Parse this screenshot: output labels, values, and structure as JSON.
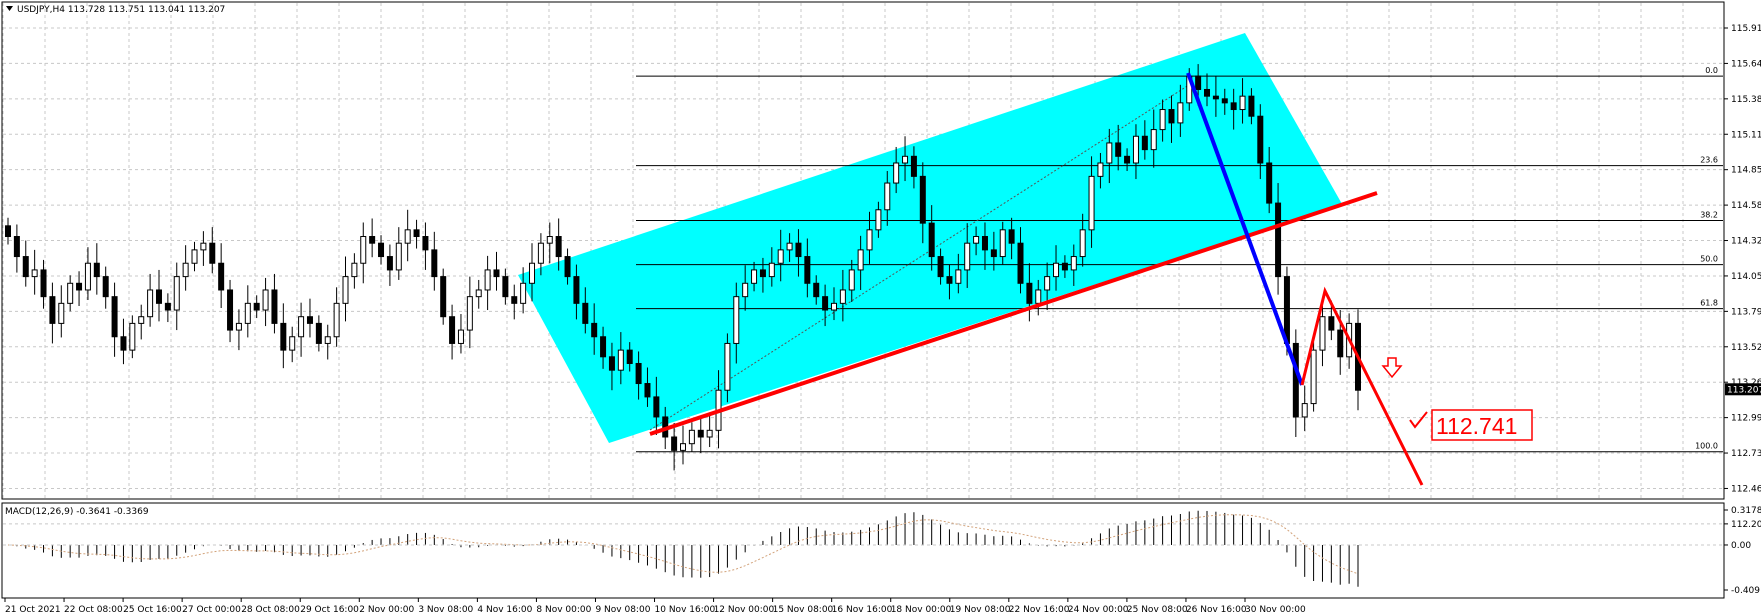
{
  "header": {
    "info": "USDJPY,H4 113.728 113.751 113.041 113.207"
  },
  "macd": {
    "label": "MACD(12,26,9) -0.3641 -0.3369",
    "ticks": [
      0.3178,
      0.0,
      -0.4091
    ],
    "tick_labels": [
      "0.3178",
      "0.00",
      "-0.4091"
    ]
  },
  "price_axis": {
    "ticks": [
      115.91,
      115.645,
      115.38,
      115.115,
      114.85,
      114.585,
      114.32,
      114.055,
      113.79,
      113.525,
      113.26,
      112.995,
      112.73,
      112.465,
      112.2
    ],
    "tick_labels": [
      "115.910",
      "115.645",
      "115.380",
      "115.115",
      "114.850",
      "114.585",
      "114.320",
      "114.055",
      "113.790",
      "113.525",
      "113.260",
      "112.995",
      "112.730",
      "112.465",
      "112.200"
    ],
    "current_price": "113.207"
  },
  "time_axis": {
    "labels": [
      "21 Oct 2021",
      "22 Oct 08:00",
      "25 Oct 16:00",
      "27 Oct 00:00",
      "28 Oct 08:00",
      "29 Oct 16:00",
      "2 Nov 00:00",
      "3 Nov 08:00",
      "4 Nov 16:00",
      "8 Nov 00:00",
      "9 Nov 08:00",
      "10 Nov 16:00",
      "12 Nov 00:00",
      "15 Nov 08:00",
      "16 Nov 16:00",
      "18 Nov 00:00",
      "19 Nov 08:00",
      "22 Nov 16:00",
      "24 Nov 00:00",
      "25 Nov 08:00",
      "26 Nov 16:00",
      "30 Nov 00:00"
    ]
  },
  "fibonacci": {
    "levels": [
      {
        "label": "0.0",
        "price": 115.55
      },
      {
        "label": "23.6",
        "price": 114.88
      },
      {
        "label": "38.2",
        "price": 114.47
      },
      {
        "label": "50.0",
        "price": 114.14
      },
      {
        "label": "61.8",
        "price": 113.81
      },
      {
        "label": "100.0",
        "price": 112.74
      }
    ]
  },
  "target": {
    "label": "112.741"
  },
  "colors": {
    "channel": "#00ffff",
    "trendline": "#ff0000",
    "bluedrop": "#0000ff",
    "candle": "#000000",
    "grid": "#c8c8c8"
  },
  "chart_data": {
    "type": "candlestick",
    "symbol": "USDJPY",
    "timeframe": "H4",
    "ylim": [
      112.2,
      116.0
    ],
    "candles": [],
    "candle_seed_closes": [
      114.35,
      114.2,
      114.05,
      114.1,
      113.9,
      113.7,
      113.85,
      114.0,
      113.95,
      114.15,
      114.05,
      113.9,
      113.6,
      113.5,
      113.7,
      113.75,
      113.95,
      113.85,
      113.8,
      114.05,
      114.15,
      114.25,
      114.3,
      114.15,
      113.95,
      113.65,
      113.7,
      113.85,
      113.8,
      113.95,
      113.7,
      113.5,
      113.6,
      113.75,
      113.7,
      113.55,
      113.6,
      113.85,
      114.05,
      114.15,
      114.35,
      114.3,
      114.2,
      114.1,
      114.3,
      114.4,
      114.35,
      114.25,
      114.05,
      113.75,
      113.55,
      113.65,
      113.9,
      113.95,
      114.1,
      114.05,
      113.9,
      113.85,
      114.0,
      114.15,
      114.3,
      114.35,
      114.2,
      114.05,
      113.85,
      113.7,
      113.6,
      113.45,
      113.35,
      113.5,
      113.4,
      113.25,
      113.15,
      113.0,
      112.85,
      112.75,
      112.8,
      112.9,
      112.85,
      112.9,
      113.2,
      113.55,
      113.9,
      114.0,
      114.1,
      114.05,
      114.15,
      114.25,
      114.3,
      114.2,
      114.0,
      113.9,
      113.8,
      113.85,
      113.95,
      114.1,
      114.25,
      114.4,
      114.55,
      114.75,
      114.9,
      114.95,
      114.8,
      114.45,
      114.2,
      114.05,
      114.0,
      114.1,
      114.3,
      114.35,
      114.25,
      114.2,
      114.4,
      114.3,
      114.0,
      113.85,
      113.95,
      114.05,
      114.15,
      114.1,
      114.2,
      114.4,
      114.8,
      114.9,
      115.05,
      114.95,
      114.9,
      115.1,
      115.0,
      115.15,
      115.3,
      115.2,
      115.35,
      115.55,
      115.45,
      115.4,
      115.38,
      115.35,
      115.3,
      115.4,
      115.25,
      114.9,
      114.6,
      114.05,
      113.55,
      113.0,
      113.1,
      113.5,
      113.75,
      113.65,
      113.45,
      113.7,
      113.2
    ],
    "price_ticks": [
      115.91,
      115.645,
      115.38,
      115.115,
      114.85,
      114.585,
      114.32,
      114.055,
      113.79,
      113.525,
      113.26,
      112.995,
      112.73,
      112.465,
      112.2
    ],
    "current_price": 113.207,
    "target_price": 112.741,
    "macd": {
      "value": -0.3641,
      "signal": -0.3369,
      "ylim": [
        -0.4091,
        0.3178
      ]
    }
  }
}
